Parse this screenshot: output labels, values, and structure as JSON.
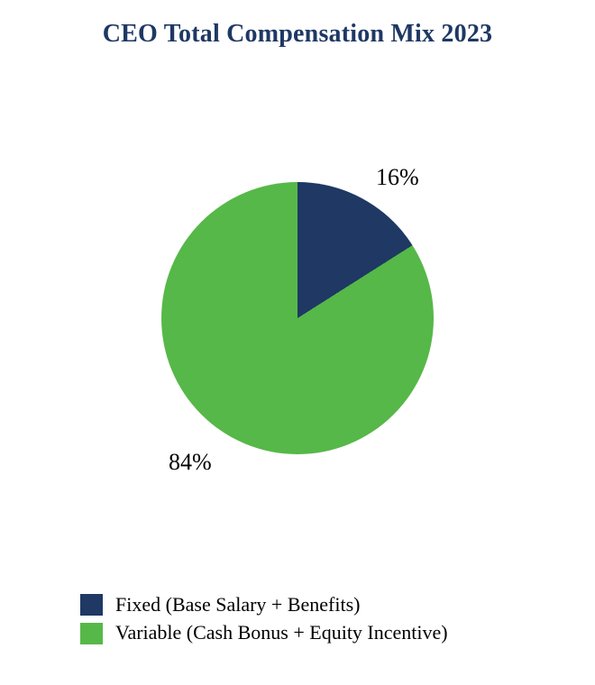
{
  "title": "CEO Total Compensation Mix 2023",
  "colors": {
    "title": "#1f3864",
    "fixed": "#1f3864",
    "variable": "#56b848",
    "background": "#ffffff",
    "data_label_text": "#000000"
  },
  "chart_data": {
    "type": "pie",
    "title": "CEO Total Compensation Mix 2023",
    "start_angle": 0,
    "direction": "clockwise",
    "legend_position": "bottom-left",
    "slices": [
      {
        "label": "Fixed (Base Salary + Benefits)",
        "value": 16,
        "data_label": "16%",
        "color": "#1f3864"
      },
      {
        "label": "Variable (Cash Bonus + Equity Incentive)",
        "value": 84,
        "data_label": "84%",
        "color": "#56b848"
      }
    ]
  }
}
